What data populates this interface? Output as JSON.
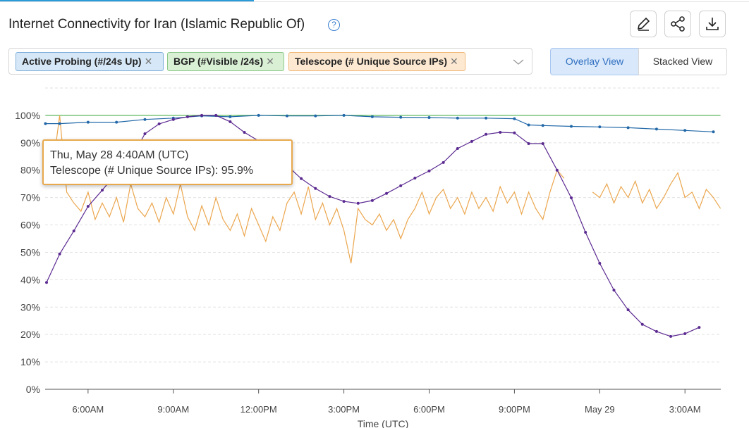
{
  "header": {
    "title": "Internet Connectivity for Iran (Islamic Republic Of)"
  },
  "filters": [
    "Active Probing (#/24s Up)",
    "BGP (#Visible /24s)",
    "Telescope (# Unique Source IPs)"
  ],
  "views": [
    "Overlay View",
    "Stacked View"
  ],
  "tooltip": {
    "title": "Thu, May 28 4:40AM (UTC)",
    "text": "Telescope (# Unique Source IPs): 95.9%"
  },
  "chart_data": {
    "type": "line",
    "xlabel": "Time (UTC)",
    "xlim": [
      4.49,
      28.26
    ],
    "ylim": [
      0,
      110
    ],
    "grid": true,
    "xticks": [
      {
        "value": 6,
        "label": "6:00AM"
      },
      {
        "value": 9,
        "label": "9:00AM"
      },
      {
        "value": 12,
        "label": "12:00PM"
      },
      {
        "value": 15,
        "label": "3:00PM"
      },
      {
        "value": 18,
        "label": "6:00PM"
      },
      {
        "value": 21,
        "label": "9:00PM"
      },
      {
        "value": 24,
        "label": "May 29"
      },
      {
        "value": 27,
        "label": "3:00AM"
      }
    ],
    "yticks": [
      {
        "value": 0,
        "label": "0%"
      },
      {
        "value": 10,
        "label": "10%"
      },
      {
        "value": 20,
        "label": "20%"
      },
      {
        "value": 30,
        "label": "30%"
      },
      {
        "value": 40,
        "label": "40%"
      },
      {
        "value": 50,
        "label": "50%"
      },
      {
        "value": 60,
        "label": "60%"
      },
      {
        "value": 70,
        "label": "70%"
      },
      {
        "value": 80,
        "label": "80%"
      },
      {
        "value": 90,
        "label": "90%"
      },
      {
        "value": 100,
        "label": "100%"
      }
    ],
    "series": [
      {
        "name": "BGP (#Visible /24s)",
        "color": "#5cb85c",
        "x": [
          4.5,
          28.25
        ],
        "values": [
          100,
          100
        ]
      },
      {
        "name": "Telescope (# Unique Source IPs)",
        "color": "#eba64e",
        "x": [
          4.5,
          4.75,
          5,
          5.25,
          5.5,
          5.75,
          6,
          6.25,
          6.5,
          6.75,
          7,
          7.25,
          7.5,
          7.75,
          8,
          8.25,
          8.5,
          8.75,
          9,
          9.25,
          9.5,
          9.75,
          10,
          10.25,
          10.5,
          10.75,
          11,
          11.25,
          11.5,
          11.75,
          12,
          12.25,
          12.5,
          12.75,
          13,
          13.25,
          13.5,
          13.75,
          14,
          14.25,
          14.5,
          14.75,
          15,
          15.25,
          15.5,
          15.75,
          16,
          16.25,
          16.5,
          16.75,
          17,
          17.25,
          17.5,
          17.75,
          18,
          18.25,
          18.5,
          18.75,
          19,
          19.25,
          19.5,
          19.75,
          20,
          20.25,
          20.5,
          20.75,
          21,
          21.25,
          21.5,
          21.75,
          22,
          22.25,
          22.5,
          22.75,
          23,
          23.25,
          23.5,
          23.75,
          24,
          24.25,
          24.5,
          24.75,
          25,
          25.25,
          25.5,
          25.75,
          26,
          26.25,
          26.5,
          26.75,
          27,
          27.25,
          27.5,
          27.75,
          28,
          28.25
        ],
        "values": [
          85,
          80,
          100,
          72,
          68,
          65,
          72,
          62,
          68,
          63,
          70,
          61,
          75,
          66,
          63,
          68,
          61,
          70,
          64,
          75,
          63,
          58,
          67,
          60,
          70,
          62,
          58,
          64,
          56,
          66,
          60,
          54,
          63,
          58,
          68,
          72,
          64,
          74,
          62,
          68,
          60,
          66,
          58,
          46,
          66,
          62,
          60,
          64,
          58,
          62,
          55,
          62,
          66,
          72,
          64,
          70,
          73,
          66,
          70,
          64,
          72,
          66,
          70,
          65,
          74,
          68,
          72,
          64,
          72,
          66,
          62,
          72,
          80,
          77,
          null,
          null,
          null,
          72,
          70,
          75,
          68,
          74,
          70,
          76,
          68,
          73,
          66,
          70,
          75,
          79,
          70,
          72,
          66,
          73,
          70,
          66
        ]
      },
      {
        "name": "Active Probing (#/24s Up)",
        "color": "#2268a8",
        "markers": true,
        "x": [
          4.5,
          5,
          6,
          7,
          8,
          9,
          10,
          11,
          12,
          13,
          14,
          15,
          16,
          17,
          18,
          19,
          20,
          21,
          21.5,
          22,
          23,
          24,
          25,
          26,
          27,
          28
        ],
        "values": [
          97,
          97,
          97.5,
          97.5,
          98.5,
          99,
          99.8,
          99.5,
          100,
          99.8,
          99.8,
          100,
          99.5,
          99.3,
          99.2,
          99,
          99,
          98.8,
          96.5,
          96.3,
          96,
          95.8,
          95.5,
          95,
          94.5,
          94
        ]
      },
      {
        "color": "#5b2a91",
        "markers": true,
        "x": [
          4.54,
          5,
          5.5,
          6,
          6.5,
          7,
          7.5,
          8,
          8.5,
          9,
          9.5,
          10,
          10.5,
          11,
          11.5,
          12,
          12.5,
          13,
          13.5,
          14,
          14.5,
          15,
          15.5,
          16,
          16.5,
          17,
          17.5,
          18,
          18.5,
          19,
          19.5,
          20,
          20.5,
          21,
          21.5,
          22,
          22.5,
          23,
          23.5,
          24,
          24.5,
          25,
          25.5,
          26,
          26.5,
          27,
          27.5
        ],
        "values": [
          39,
          49.4,
          57.8,
          66.8,
          72.7,
          79,
          84,
          93.3,
          96.9,
          98.5,
          99.5,
          100,
          100,
          97.7,
          93.8,
          90.7,
          86.9,
          81.7,
          76.9,
          73.3,
          70.4,
          68.6,
          67.9,
          68.9,
          71.5,
          74.3,
          77.1,
          79.7,
          82.8,
          87.9,
          90.5,
          93.1,
          93.8,
          93.6,
          89.7,
          89.7,
          80,
          69.9,
          57.3,
          46,
          36.2,
          29,
          23.7,
          21.1,
          19.3,
          20.3,
          22.6
        ]
      }
    ]
  }
}
